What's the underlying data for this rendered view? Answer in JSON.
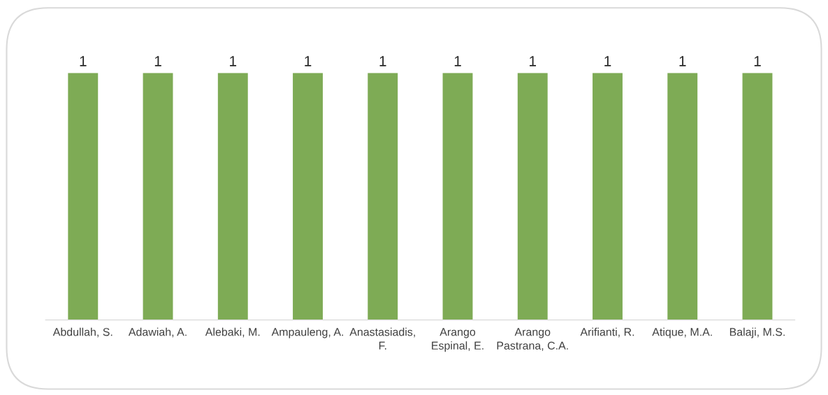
{
  "chart_data": {
    "type": "bar",
    "categories": [
      "Abdullah, S.",
      "Adawiah, A.",
      "Alebaki, M.",
      "Ampauleng, A.",
      "Anastasiadis, F.",
      "Arango Espinal, E.",
      "Arango Pastrana, C.A.",
      "Arifianti, R.",
      "Atique, M.A.",
      "Balaji, M.S."
    ],
    "values": [
      1,
      1,
      1,
      1,
      1,
      1,
      1,
      1,
      1,
      1
    ],
    "color": "#7eab55",
    "data_labels": true,
    "tick_labels": "x",
    "grid": false,
    "legend": false
  }
}
